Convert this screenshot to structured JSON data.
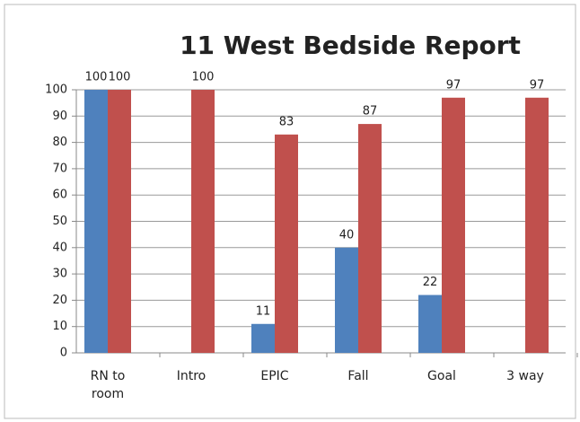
{
  "chart_data": {
    "type": "bar",
    "title": "11 West Bedside Report",
    "categories": [
      "RN to room",
      "Intro",
      "EPIC",
      "Fall",
      "Goal",
      "3 way"
    ],
    "series": [
      {
        "color": "#4f81bd",
        "values": [
          100,
          null,
          11,
          40,
          22,
          null
        ]
      },
      {
        "color": "#c0504d",
        "values": [
          100,
          100,
          83,
          87,
          97,
          97
        ]
      }
    ],
    "ylim": [
      0,
      100
    ],
    "yticks": [
      0,
      10,
      20,
      30,
      40,
      50,
      60,
      70,
      80,
      90,
      100
    ],
    "grid": true
  }
}
